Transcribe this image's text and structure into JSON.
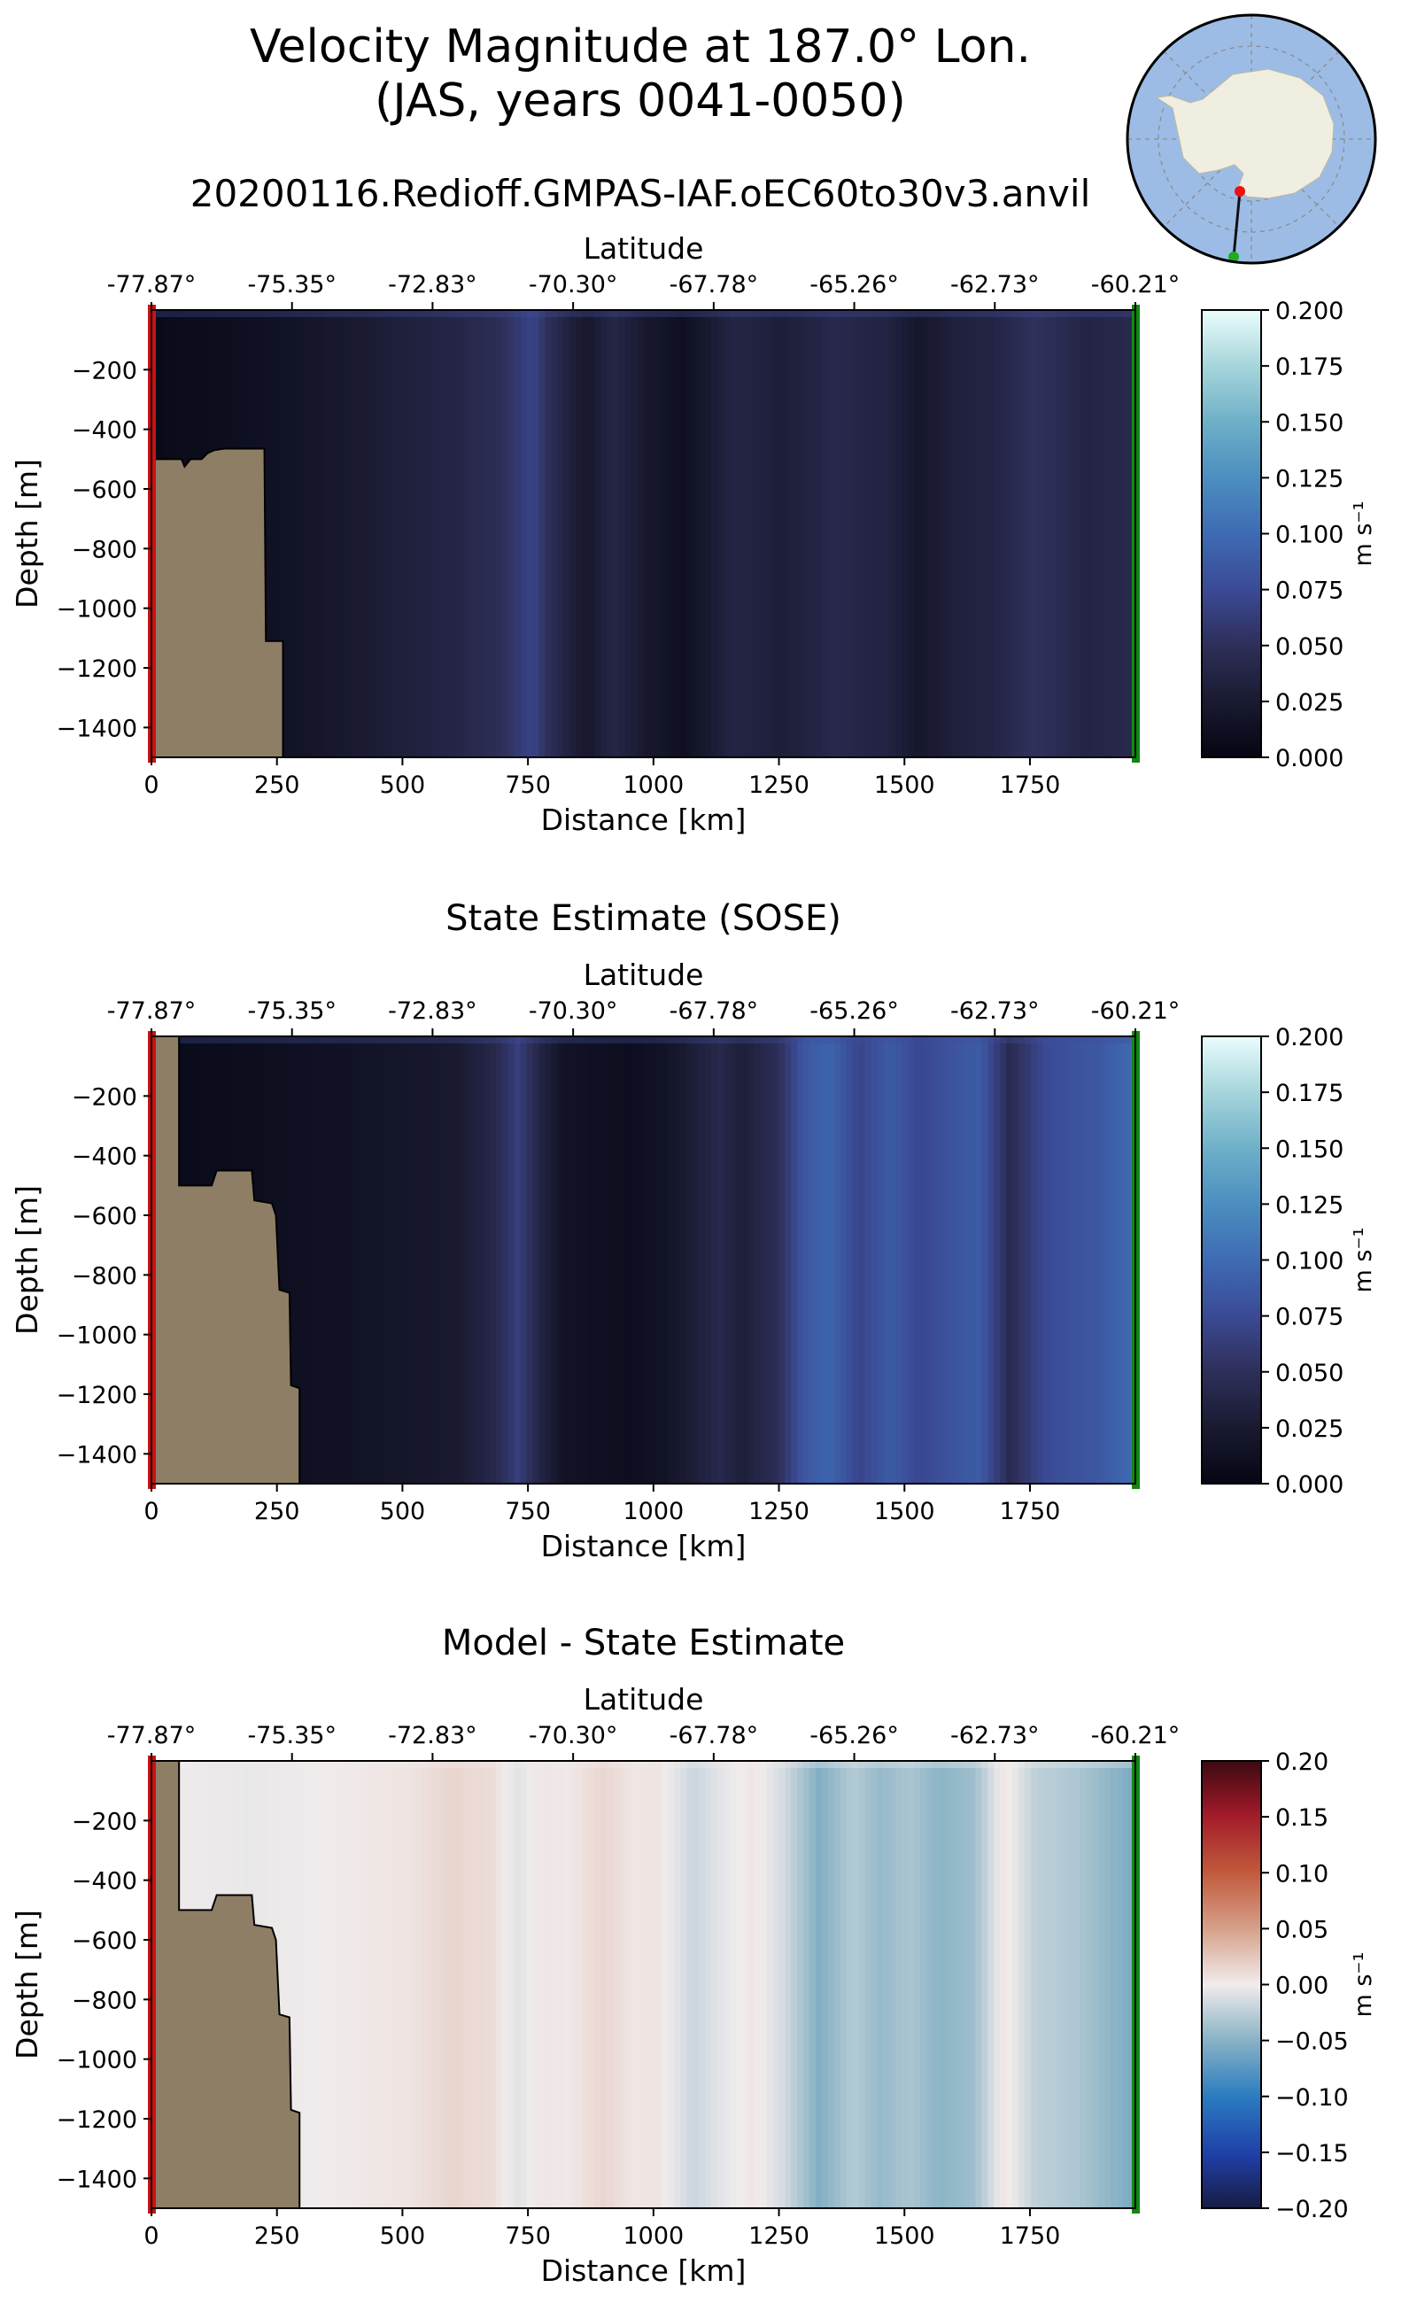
{
  "figure": {
    "title_line1": "Velocity Magnitude at 187.0° Lon.",
    "title_line2": "(JAS, years 0041-0050)",
    "subtitle": "20200116.Redioff.GMPAS-IAF.oEC60to30v3.anvil"
  },
  "colors": {
    "land": "#8e7e66",
    "start_marker": "#cc1111",
    "end_marker": "#118811",
    "inset_ocean": "#9cbce6",
    "inset_land": "#efeee0"
  },
  "chart_data": [
    {
      "type": "heatmap",
      "title": "",
      "top_xlabel": "Latitude",
      "top_ticks": [
        {
          "km": 0,
          "label": "-77.87°"
        },
        {
          "km": 280,
          "label": "-75.35°"
        },
        {
          "km": 560,
          "label": "-72.83°"
        },
        {
          "km": 840,
          "label": "-70.30°"
        },
        {
          "km": 1120,
          "label": "-67.78°"
        },
        {
          "km": 1400,
          "label": "-65.26°"
        },
        {
          "km": 1680,
          "label": "-62.73°"
        },
        {
          "km": 1960,
          "label": "-60.21°"
        }
      ],
      "xlabel": "Distance [km]",
      "ylabel": "Depth [m]",
      "xlim": [
        0,
        1960
      ],
      "ylim": [
        -1500,
        0
      ],
      "xticks": [
        0,
        250,
        500,
        750,
        1000,
        1250,
        1500,
        1750
      ],
      "yticks": [
        -200,
        -400,
        -600,
        -800,
        -1000,
        -1200,
        -1400
      ],
      "colorbar": {
        "label": "m s⁻¹",
        "colormap": "ice",
        "vmin": 0.0,
        "vmax": 0.2,
        "ticks": [
          "0.000",
          "0.025",
          "0.050",
          "0.075",
          "0.100",
          "0.125",
          "0.150",
          "0.175",
          "0.200"
        ]
      },
      "column_profile": [
        {
          "x": 0,
          "v": 0.006
        },
        {
          "x": 150,
          "v": 0.01
        },
        {
          "x": 300,
          "v": 0.018
        },
        {
          "x": 500,
          "v": 0.032
        },
        {
          "x": 620,
          "v": 0.04
        },
        {
          "x": 700,
          "v": 0.05
        },
        {
          "x": 760,
          "v": 0.07
        },
        {
          "x": 790,
          "v": 0.05
        },
        {
          "x": 830,
          "v": 0.034
        },
        {
          "x": 870,
          "v": 0.022
        },
        {
          "x": 920,
          "v": 0.04
        },
        {
          "x": 980,
          "v": 0.024
        },
        {
          "x": 1060,
          "v": 0.012
        },
        {
          "x": 1160,
          "v": 0.038
        },
        {
          "x": 1260,
          "v": 0.03
        },
        {
          "x": 1360,
          "v": 0.042
        },
        {
          "x": 1460,
          "v": 0.036
        },
        {
          "x": 1530,
          "v": 0.022
        },
        {
          "x": 1600,
          "v": 0.032
        },
        {
          "x": 1680,
          "v": 0.038
        },
        {
          "x": 1760,
          "v": 0.052
        },
        {
          "x": 1860,
          "v": 0.038
        },
        {
          "x": 1960,
          "v": 0.042
        }
      ],
      "bathymetry": [
        [
          5,
          -1500
        ],
        [
          5,
          -500
        ],
        [
          60,
          -500
        ],
        [
          66,
          -525
        ],
        [
          78,
          -500
        ],
        [
          100,
          -500
        ],
        [
          112,
          -480
        ],
        [
          125,
          -470
        ],
        [
          145,
          -465
        ],
        [
          225,
          -465
        ],
        [
          228,
          -1110
        ],
        [
          262,
          -1110
        ],
        [
          262,
          -1500
        ]
      ]
    },
    {
      "type": "heatmap",
      "title": "State Estimate (SOSE)",
      "top_xlabel": "Latitude",
      "top_ticks": [
        {
          "km": 0,
          "label": "-77.87°"
        },
        {
          "km": 280,
          "label": "-75.35°"
        },
        {
          "km": 560,
          "label": "-72.83°"
        },
        {
          "km": 840,
          "label": "-70.30°"
        },
        {
          "km": 1120,
          "label": "-67.78°"
        },
        {
          "km": 1400,
          "label": "-65.26°"
        },
        {
          "km": 1680,
          "label": "-62.73°"
        },
        {
          "km": 1960,
          "label": "-60.21°"
        }
      ],
      "xlabel": "Distance [km]",
      "ylabel": "Depth [m]",
      "xlim": [
        0,
        1960
      ],
      "ylim": [
        -1500,
        0
      ],
      "xticks": [
        0,
        250,
        500,
        750,
        1000,
        1250,
        1500,
        1750
      ],
      "yticks": [
        -200,
        -400,
        -600,
        -800,
        -1000,
        -1200,
        -1400
      ],
      "colorbar": {
        "label": "m s⁻¹",
        "colormap": "ice",
        "vmin": 0.0,
        "vmax": 0.2,
        "ticks": [
          "0.000",
          "0.025",
          "0.050",
          "0.075",
          "0.100",
          "0.125",
          "0.150",
          "0.175",
          "0.200"
        ]
      },
      "column_profile": [
        {
          "x": 0,
          "v": 0.005
        },
        {
          "x": 200,
          "v": 0.01
        },
        {
          "x": 400,
          "v": 0.016
        },
        {
          "x": 600,
          "v": 0.024
        },
        {
          "x": 680,
          "v": 0.04
        },
        {
          "x": 730,
          "v": 0.065
        },
        {
          "x": 770,
          "v": 0.04
        },
        {
          "x": 820,
          "v": 0.016
        },
        {
          "x": 960,
          "v": 0.01
        },
        {
          "x": 1020,
          "v": 0.016
        },
        {
          "x": 1080,
          "v": 0.03
        },
        {
          "x": 1130,
          "v": 0.042
        },
        {
          "x": 1180,
          "v": 0.03
        },
        {
          "x": 1250,
          "v": 0.05
        },
        {
          "x": 1300,
          "v": 0.085
        },
        {
          "x": 1350,
          "v": 0.095
        },
        {
          "x": 1410,
          "v": 0.07
        },
        {
          "x": 1470,
          "v": 0.088
        },
        {
          "x": 1530,
          "v": 0.072
        },
        {
          "x": 1590,
          "v": 0.082
        },
        {
          "x": 1650,
          "v": 0.088
        },
        {
          "x": 1710,
          "v": 0.045
        },
        {
          "x": 1780,
          "v": 0.075
        },
        {
          "x": 1880,
          "v": 0.085
        },
        {
          "x": 1960,
          "v": 0.1
        }
      ],
      "bathymetry": [
        [
          5,
          -1500
        ],
        [
          5,
          0
        ],
        [
          55,
          0
        ],
        [
          55,
          -500
        ],
        [
          120,
          -500
        ],
        [
          130,
          -450
        ],
        [
          200,
          -450
        ],
        [
          205,
          -550
        ],
        [
          240,
          -560
        ],
        [
          248,
          -600
        ],
        [
          255,
          -850
        ],
        [
          275,
          -860
        ],
        [
          278,
          -1170
        ],
        [
          295,
          -1180
        ],
        [
          295,
          -1500
        ]
      ]
    },
    {
      "type": "heatmap",
      "title": "Model - State Estimate",
      "top_xlabel": "Latitude",
      "top_ticks": [
        {
          "km": 0,
          "label": "-77.87°"
        },
        {
          "km": 280,
          "label": "-75.35°"
        },
        {
          "km": 560,
          "label": "-72.83°"
        },
        {
          "km": 840,
          "label": "-70.30°"
        },
        {
          "km": 1120,
          "label": "-67.78°"
        },
        {
          "km": 1400,
          "label": "-65.26°"
        },
        {
          "km": 1680,
          "label": "-62.73°"
        },
        {
          "km": 1960,
          "label": "-60.21°"
        }
      ],
      "xlabel": "Distance [km]",
      "ylabel": "Depth [m]",
      "xlim": [
        0,
        1960
      ],
      "ylim": [
        -1500,
        0
      ],
      "xticks": [
        0,
        250,
        500,
        750,
        1000,
        1250,
        1500,
        1750
      ],
      "yticks": [
        -200,
        -400,
        -600,
        -800,
        -1000,
        -1200,
        -1400
      ],
      "colorbar": {
        "label": "m s⁻¹",
        "colormap": "balance",
        "vmin": -0.2,
        "vmax": 0.2,
        "ticks": [
          "−0.20",
          "−0.15",
          "−0.10",
          "−0.05",
          "0.00",
          "0.05",
          "0.10",
          "0.15",
          "0.20"
        ]
      },
      "column_profile": [
        {
          "x": 0,
          "v": 0.0
        },
        {
          "x": 200,
          "v": -0.004
        },
        {
          "x": 400,
          "v": 0.002
        },
        {
          "x": 520,
          "v": 0.006
        },
        {
          "x": 600,
          "v": 0.016
        },
        {
          "x": 680,
          "v": 0.01
        },
        {
          "x": 730,
          "v": -0.008
        },
        {
          "x": 770,
          "v": 0.004
        },
        {
          "x": 830,
          "v": 0.002
        },
        {
          "x": 900,
          "v": 0.015
        },
        {
          "x": 960,
          "v": 0.004
        },
        {
          "x": 1010,
          "v": 0.006
        },
        {
          "x": 1080,
          "v": -0.02
        },
        {
          "x": 1150,
          "v": -0.003
        },
        {
          "x": 1200,
          "v": 0.004
        },
        {
          "x": 1260,
          "v": -0.015
        },
        {
          "x": 1330,
          "v": -0.055
        },
        {
          "x": 1400,
          "v": -0.03
        },
        {
          "x": 1450,
          "v": -0.045
        },
        {
          "x": 1510,
          "v": -0.035
        },
        {
          "x": 1570,
          "v": -0.05
        },
        {
          "x": 1640,
          "v": -0.04
        },
        {
          "x": 1700,
          "v": 0.006
        },
        {
          "x": 1760,
          "v": -0.025
        },
        {
          "x": 1850,
          "v": -0.035
        },
        {
          "x": 1960,
          "v": -0.06
        }
      ],
      "bathymetry": [
        [
          5,
          -1500
        ],
        [
          5,
          0
        ],
        [
          55,
          0
        ],
        [
          55,
          -500
        ],
        [
          120,
          -500
        ],
        [
          130,
          -450
        ],
        [
          200,
          -450
        ],
        [
          205,
          -550
        ],
        [
          240,
          -560
        ],
        [
          248,
          -600
        ],
        [
          255,
          -850
        ],
        [
          275,
          -860
        ],
        [
          278,
          -1170
        ],
        [
          295,
          -1180
        ],
        [
          295,
          -1500
        ]
      ]
    }
  ]
}
